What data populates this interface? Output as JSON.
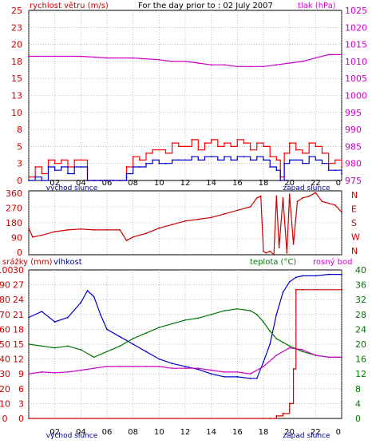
{
  "chart_data": [
    {
      "type": "line",
      "title": "For the day prior to : 02 July 2007",
      "left_axis_label": "rychlost větru (m/s)",
      "right_axis_label": "tlak (hPa)",
      "ylim": [
        0,
        25
      ],
      "ylim_right": [
        975,
        1025
      ],
      "yticks": [
        "0",
        "3",
        "5",
        "8",
        "10",
        "13",
        "15",
        "18",
        "20",
        "23",
        "25"
      ],
      "yticks_right": [
        "975",
        "980",
        "985",
        "990",
        "995",
        "1000",
        "1005",
        "1010",
        "1015",
        "1020",
        "1025"
      ],
      "xticks": [
        "02",
        "04",
        "06",
        "08",
        "10",
        "12",
        "14",
        "16",
        "18",
        "20",
        "22",
        "0"
      ],
      "x_annotations": [
        "východ slunce",
        "západ slunce"
      ],
      "xlim": [
        0,
        24
      ],
      "grid": true,
      "series": [
        {
          "key": "gust",
          "color": "#ff0000",
          "axis": "left",
          "x": [
            0,
            0.5,
            1,
            1.5,
            2,
            2.5,
            3,
            3.5,
            4,
            4.5,
            5,
            5.5,
            6,
            6.5,
            7,
            7.5,
            8,
            8.5,
            9,
            9.5,
            10,
            10.5,
            11,
            11.5,
            12,
            12.5,
            13,
            13.5,
            14,
            14.5,
            15,
            15.5,
            16,
            16.5,
            17,
            17.5,
            18,
            18.5,
            19,
            19.3,
            19.6,
            20,
            20.5,
            21,
            21.5,
            22,
            22.5,
            23,
            23.5,
            24
          ],
          "y": [
            0.5,
            2,
            1,
            3,
            2.5,
            3,
            2,
            3,
            3,
            0,
            0,
            0,
            0,
            0,
            0,
            2,
            3.5,
            3,
            4,
            4.5,
            4.5,
            4,
            5.5,
            5,
            5,
            6,
            4.5,
            5.5,
            6,
            5,
            5.5,
            5,
            6,
            5.5,
            4.5,
            5.5,
            5,
            3.5,
            3,
            0.5,
            4,
            5.5,
            4.5,
            4,
            5.5,
            5,
            4,
            2.5,
            3,
            2
          ]
        },
        {
          "key": "wind",
          "color": "#0000cc",
          "axis": "left",
          "x": [
            0,
            0.5,
            1,
            1.5,
            2,
            2.5,
            3,
            3.5,
            4,
            4.5,
            5,
            5.5,
            6,
            6.5,
            7,
            7.5,
            8,
            8.5,
            9,
            9.5,
            10,
            10.5,
            11,
            11.5,
            12,
            12.5,
            13,
            13.5,
            14,
            14.5,
            15,
            15.5,
            16,
            16.5,
            17,
            17.5,
            18,
            18.5,
            19,
            19.3,
            19.6,
            20,
            20.5,
            21,
            21.5,
            22,
            22.5,
            23,
            23.5,
            24
          ],
          "y": [
            0,
            0.5,
            0,
            2,
            1.5,
            2,
            1,
            2,
            2,
            0,
            0,
            0,
            0,
            0,
            0,
            1,
            2,
            2,
            2.5,
            3,
            2.5,
            2.5,
            3,
            3,
            3,
            3.5,
            3,
            3.5,
            3.5,
            3,
            3.5,
            3,
            3.5,
            3.5,
            3,
            3.5,
            3,
            2,
            1.5,
            0,
            2.5,
            3,
            3,
            2.5,
            3.5,
            3,
            2.5,
            1.5,
            1.5,
            1
          ]
        },
        {
          "key": "pressure",
          "color": "#cc00cc",
          "axis": "right",
          "x": [
            0,
            2,
            4,
            6,
            8,
            10,
            11,
            12,
            13,
            14,
            15,
            16,
            17,
            18,
            19,
            20,
            21,
            22,
            23,
            24
          ],
          "y": [
            1011.5,
            1011.5,
            1011.5,
            1011,
            1011,
            1010.5,
            1010,
            1010,
            1009.5,
            1009,
            1009,
            1008.5,
            1008.5,
            1008.5,
            1009,
            1009.5,
            1010,
            1011,
            1012,
            1012
          ]
        }
      ]
    },
    {
      "type": "line",
      "left_axis_label": "",
      "ylim": [
        0,
        360
      ],
      "yticks": [
        "0",
        "90",
        "180",
        "270",
        "360"
      ],
      "right_tick_labels": [
        "N",
        "W",
        "S",
        "E",
        "N"
      ],
      "xlim": [
        0,
        24
      ],
      "grid": true,
      "series": [
        {
          "key": "direction",
          "color": "#cc0000",
          "axis": "left",
          "x": [
            0,
            0.3,
            1,
            2,
            3,
            4,
            5,
            6,
            7,
            7.5,
            8,
            9,
            10,
            11,
            12,
            13,
            14,
            15,
            16,
            17,
            17.5,
            17.8,
            18,
            18.2,
            18.5,
            18.8,
            19,
            19.2,
            19.5,
            19.8,
            20,
            20.3,
            20.6,
            21,
            21.5,
            22,
            22.5,
            23,
            23.5,
            24
          ],
          "y": [
            150,
            100,
            110,
            130,
            140,
            145,
            140,
            140,
            140,
            80,
            100,
            120,
            150,
            170,
            190,
            200,
            210,
            230,
            250,
            270,
            320,
            330,
            20,
            10,
            20,
            0,
            330,
            40,
            320,
            10,
            340,
            60,
            300,
            320,
            330,
            350,
            300,
            290,
            280,
            240
          ]
        }
      ]
    },
    {
      "type": "line",
      "labels_left": [
        "srážky (mm)",
        "vlhkost"
      ],
      "labels_right": [
        "teplota (°C)",
        "rosný bod"
      ],
      "left_ticks_outer": [
        "0",
        "10",
        "20",
        "30",
        "40",
        "50",
        "60",
        "70",
        "80",
        "90",
        "100"
      ],
      "left_ticks_inner": [
        "0",
        "3",
        "6",
        "9",
        "12",
        "15",
        "18",
        "21",
        "24",
        "27",
        "30"
      ],
      "right_ticks": [
        "0",
        "4",
        "8",
        "12",
        "16",
        "20",
        "24",
        "28",
        "32",
        "36",
        "40"
      ],
      "ylim_left": [
        0,
        100
      ],
      "ylim_precip": [
        0,
        30
      ],
      "ylim_right": [
        0,
        40
      ],
      "xticks": [
        "02",
        "04",
        "06",
        "08",
        "10",
        "12",
        "14",
        "16",
        "18",
        "20",
        "22",
        "0"
      ],
      "x_annotations": [
        "východ slunce",
        "západ slunce"
      ],
      "xlim": [
        0,
        24
      ],
      "grid": true,
      "series": [
        {
          "key": "humidity",
          "color": "#0000cc",
          "axis": "left",
          "x": [
            0,
            1,
            2,
            3,
            4,
            4.5,
            5,
            5.5,
            6,
            7,
            8,
            9,
            10,
            11,
            12,
            13,
            14,
            15,
            16,
            17,
            17.5,
            18,
            18.5,
            19,
            19.5,
            20,
            20.5,
            21,
            22,
            23,
            24
          ],
          "y": [
            68,
            72,
            65,
            68,
            78,
            86,
            82,
            70,
            60,
            55,
            50,
            45,
            40,
            37,
            35,
            33,
            30,
            28,
            28,
            27,
            27,
            38,
            50,
            70,
            85,
            92,
            95,
            96,
            96,
            97,
            97
          ]
        },
        {
          "key": "temperature",
          "color": "#007700",
          "axis": "right",
          "x": [
            0,
            1,
            2,
            3,
            4,
            5,
            6,
            7,
            8,
            9,
            10,
            11,
            12,
            13,
            14,
            15,
            16,
            17,
            17.5,
            18,
            18.5,
            19,
            19.5,
            20,
            21,
            22,
            23,
            24
          ],
          "y": [
            20,
            19.5,
            19,
            19.5,
            18.5,
            16.5,
            18,
            19.5,
            21.5,
            23,
            24.5,
            25.5,
            26.5,
            27,
            28,
            29,
            29.5,
            29,
            28,
            26,
            23.5,
            21.5,
            20.5,
            19.5,
            18,
            17,
            16.5,
            16.5
          ]
        },
        {
          "key": "dewpoint",
          "color": "#cc00cc",
          "axis": "right",
          "x": [
            0,
            1,
            2,
            3,
            4,
            5,
            6,
            7,
            8,
            9,
            10,
            11,
            12,
            13,
            14,
            15,
            16,
            17,
            18,
            19,
            20,
            21,
            22,
            23,
            24
          ],
          "y": [
            12,
            12.5,
            12.3,
            12.5,
            13,
            13.5,
            14,
            14,
            14,
            14,
            14,
            13.5,
            13.5,
            13.5,
            13,
            12.5,
            12.5,
            12,
            14,
            17,
            19,
            18.5,
            17,
            16.5,
            16.5
          ]
        },
        {
          "key": "precipitation",
          "color": "#cc0000",
          "axis": "precip",
          "x": [
            0,
            18,
            18.5,
            19,
            19.5,
            20,
            20.3,
            20.5,
            21,
            24
          ],
          "y": [
            0,
            0,
            0,
            0.5,
            1,
            3,
            10,
            26,
            26,
            26
          ]
        }
      ]
    }
  ],
  "colors": {
    "frame": "#000000",
    "grid": "#888888",
    "left_axis": "#cc0000",
    "right_axis_top": "#cc00cc",
    "temperature_axis": "#007700",
    "humidity_label": "#000099",
    "dewpoint_label": "#cc00cc"
  }
}
